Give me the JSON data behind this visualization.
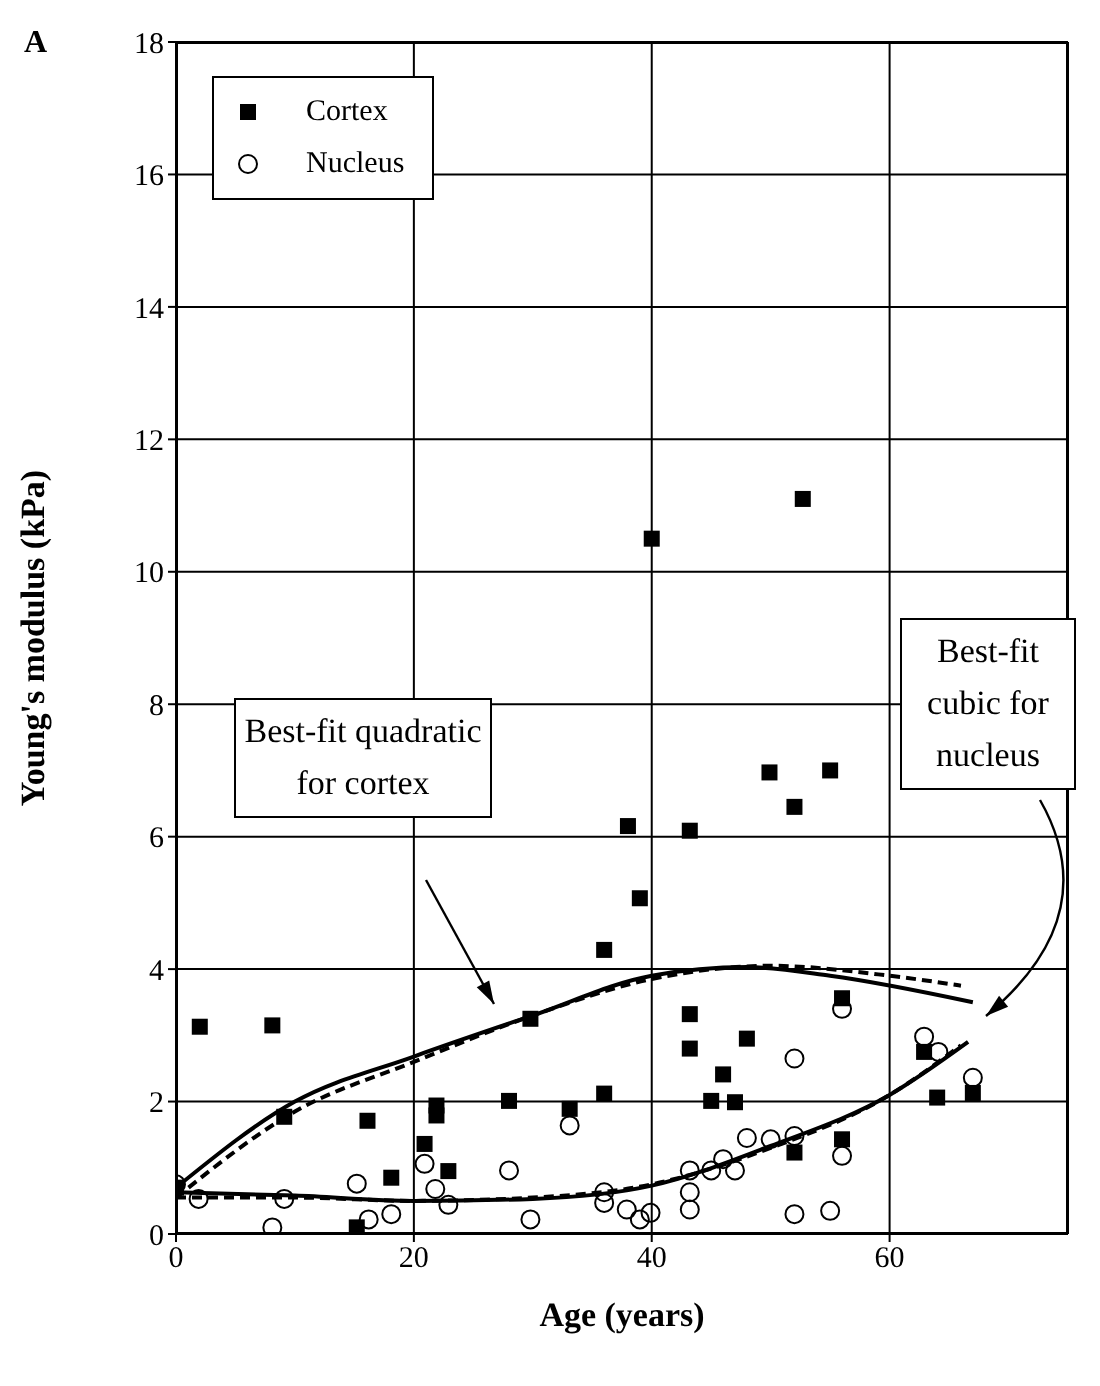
{
  "chart_data": {
    "type": "scatter",
    "title": "A",
    "xlabel": "Age (years)",
    "ylabel": "Young's modulus (kPa)",
    "xlim": [
      0,
      75
    ],
    "xticks": [
      0,
      20,
      40,
      60
    ],
    "ylim": [
      0,
      18
    ],
    "yticks": [
      0,
      2,
      4,
      6,
      8,
      10,
      12,
      14,
      16,
      18
    ],
    "grid": true,
    "legend": "top left",
    "annotations": [
      "Best-fit quadratic for cortex",
      "Best-fit cubic for nucleus"
    ],
    "series": [
      {
        "name": "Cortex",
        "color": "#000000",
        "marker": "square",
        "x": [
          0,
          2,
          8.1,
          9.1,
          16.1,
          18.1,
          15.2,
          20.9,
          21.9,
          21.9,
          22.9,
          28,
          29.8,
          33.1,
          36,
          36,
          39,
          43.2,
          43.2,
          48,
          46,
          45,
          47,
          52,
          56,
          56,
          62.9,
          64,
          67,
          40,
          49.9,
          55,
          52,
          38,
          43.2,
          52.7
        ],
        "values": [
          0.7,
          3.13,
          3.15,
          1.77,
          1.71,
          0.85,
          0.1,
          1.36,
          1.94,
          1.79,
          0.95,
          2.01,
          3.25,
          1.89,
          2.12,
          4.29,
          5.07,
          3.32,
          2.8,
          2.95,
          2.41,
          2.01,
          1.99,
          1.23,
          1.43,
          3.56,
          2.75,
          2.06,
          2.13,
          10.5,
          6.97,
          7,
          6.45,
          6.16,
          6.09,
          11.1
        ]
      },
      {
        "name": "Nucleus",
        "color": "#000000",
        "marker": "circle",
        "x": [
          0,
          1.9,
          8.1,
          9.1,
          15.2,
          16.2,
          18.1,
          20.9,
          21.8,
          22.9,
          28,
          29.8,
          33.1,
          36,
          36,
          37.9,
          39,
          39.9,
          43.2,
          43.2,
          43.2,
          45,
          46,
          47,
          48,
          50,
          52,
          52,
          52,
          55,
          56,
          56,
          62.9,
          64.1,
          67
        ],
        "values": [
          0.75,
          0.53,
          0.1,
          0.53,
          0.76,
          0.22,
          0.3,
          1.06,
          0.68,
          0.44,
          0.96,
          0.22,
          1.64,
          0.63,
          0.47,
          0.37,
          0.22,
          0.32,
          0.96,
          0.63,
          0.37,
          0.96,
          1.13,
          0.96,
          1.45,
          1.43,
          1.48,
          2.65,
          0.3,
          0.35,
          1.18,
          3.4,
          2.98,
          2.75,
          2.36
        ]
      },
      {
        "type": "line",
        "color": "#000000",
        "line_style": "solid",
        "marker": "none",
        "x": [
          0,
          10,
          20,
          30,
          40,
          48,
          55,
          67
        ],
        "values": [
          0.7,
          2.0,
          2.68,
          3.3,
          3.9,
          4.03,
          3.9,
          3.5
        ]
      },
      {
        "type": "line",
        "color": "#000000",
        "line_style": "dashed",
        "marker": "none",
        "x": [
          0,
          10,
          20,
          30,
          40,
          50,
          60,
          66
        ],
        "values": [
          0.55,
          1.85,
          2.6,
          3.3,
          3.85,
          4.05,
          3.9,
          3.75
        ]
      },
      {
        "type": "line",
        "color": "#000000",
        "line_style": "solid",
        "marker": "none",
        "x": [
          0,
          10,
          20,
          30,
          40,
          50,
          60,
          66.6
        ],
        "values": [
          0.63,
          0.58,
          0.5,
          0.53,
          0.73,
          1.33,
          2.1,
          2.9
        ]
      },
      {
        "type": "line",
        "color": "#000000",
        "line_style": "dashed",
        "marker": "none",
        "x": [
          0,
          10,
          20,
          30,
          40,
          50,
          60,
          66
        ],
        "values": [
          0.55,
          0.55,
          0.5,
          0.55,
          0.75,
          1.3,
          2.1,
          2.85
        ]
      }
    ]
  }
}
